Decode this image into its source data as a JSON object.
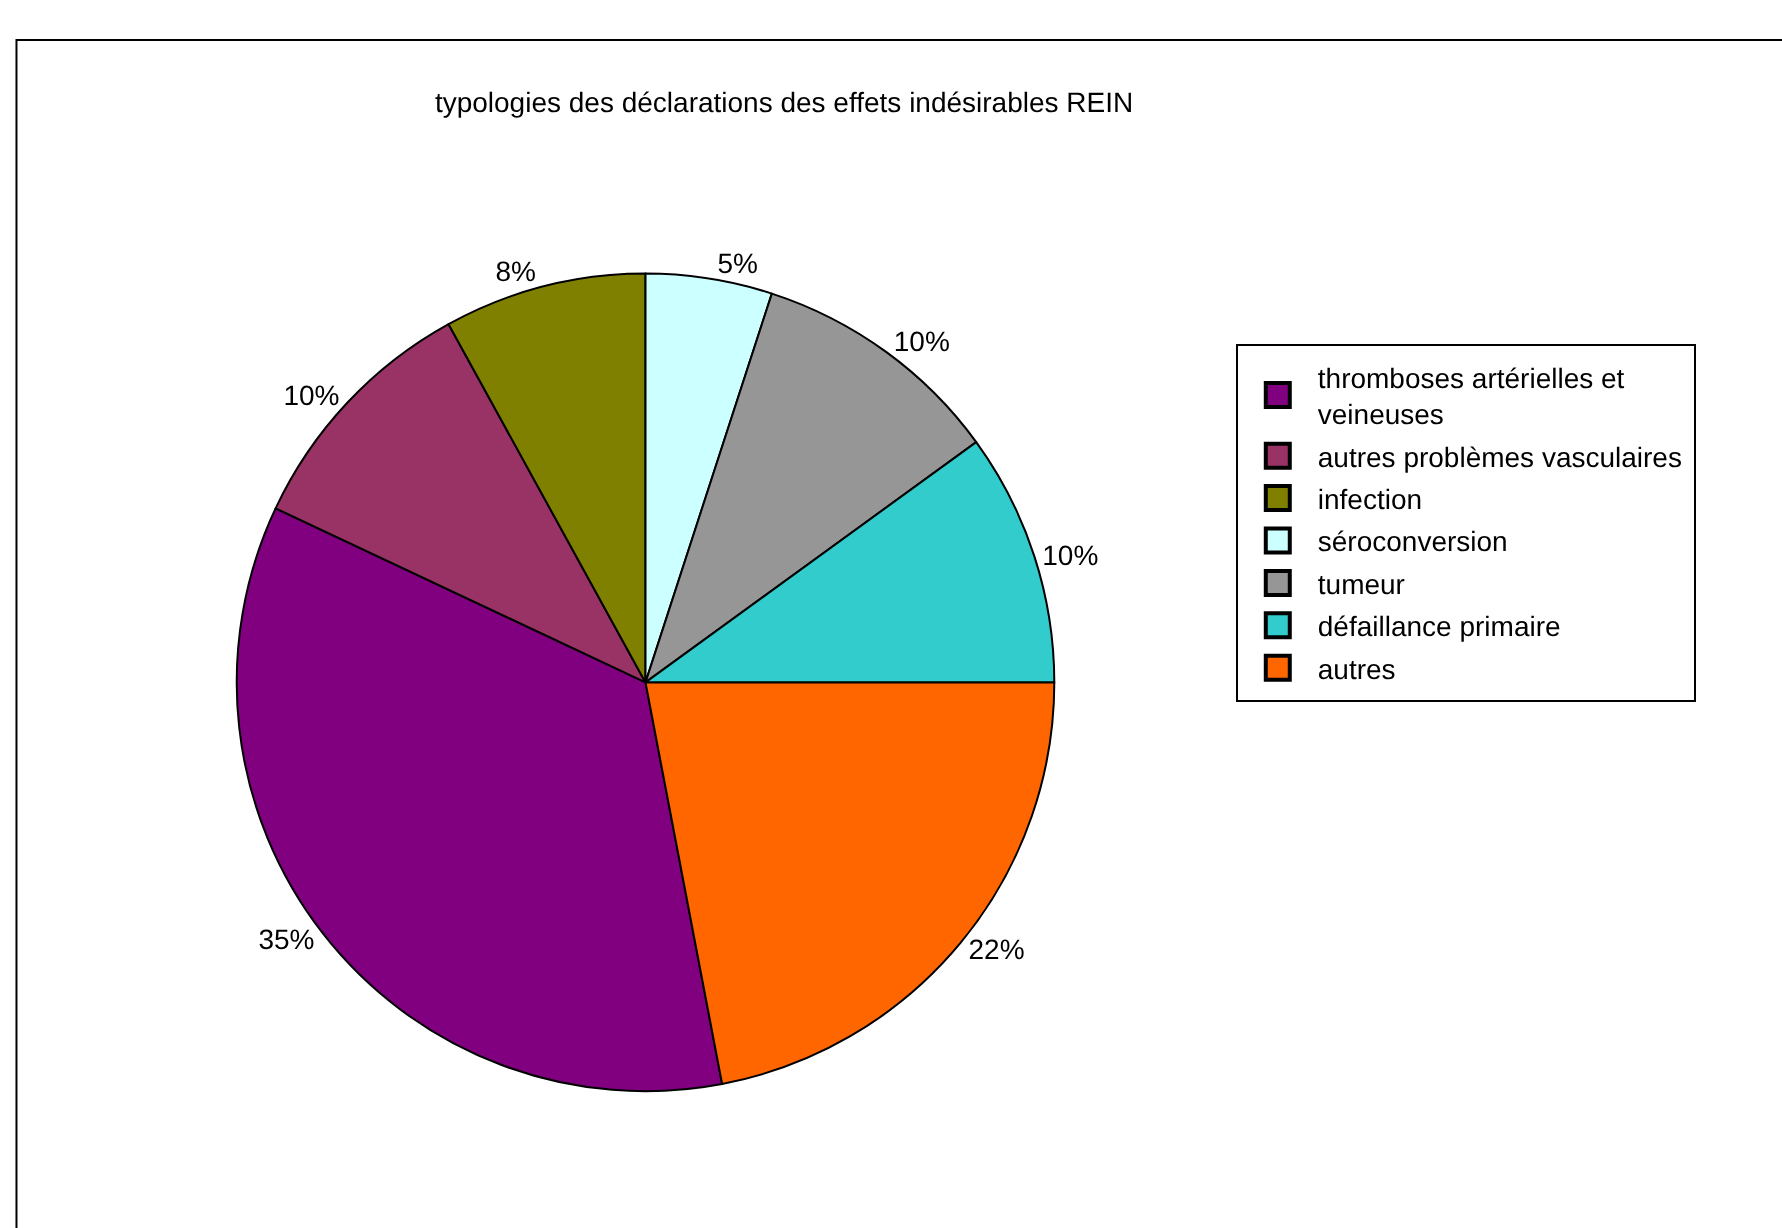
{
  "chart_data": {
    "type": "pie",
    "title": "typologies des déclarations des effets indésirables REIN",
    "categories": [
      "thromboses artérielles et veineuses",
      "autres problèmes vasculaires",
      "infection",
      "séroconversion",
      "tumeur",
      "défaillance primaire",
      "autres"
    ],
    "values": [
      35,
      10,
      8,
      5,
      10,
      10,
      22
    ],
    "colors": [
      "#800080",
      "#993366",
      "#808000",
      "#ccffff",
      "#969696",
      "#33cccc",
      "#ff6600"
    ],
    "value_labels": [
      "35%",
      "10%",
      "8%",
      "5%",
      "10%",
      "10%",
      "22%"
    ],
    "legend": "right"
  }
}
